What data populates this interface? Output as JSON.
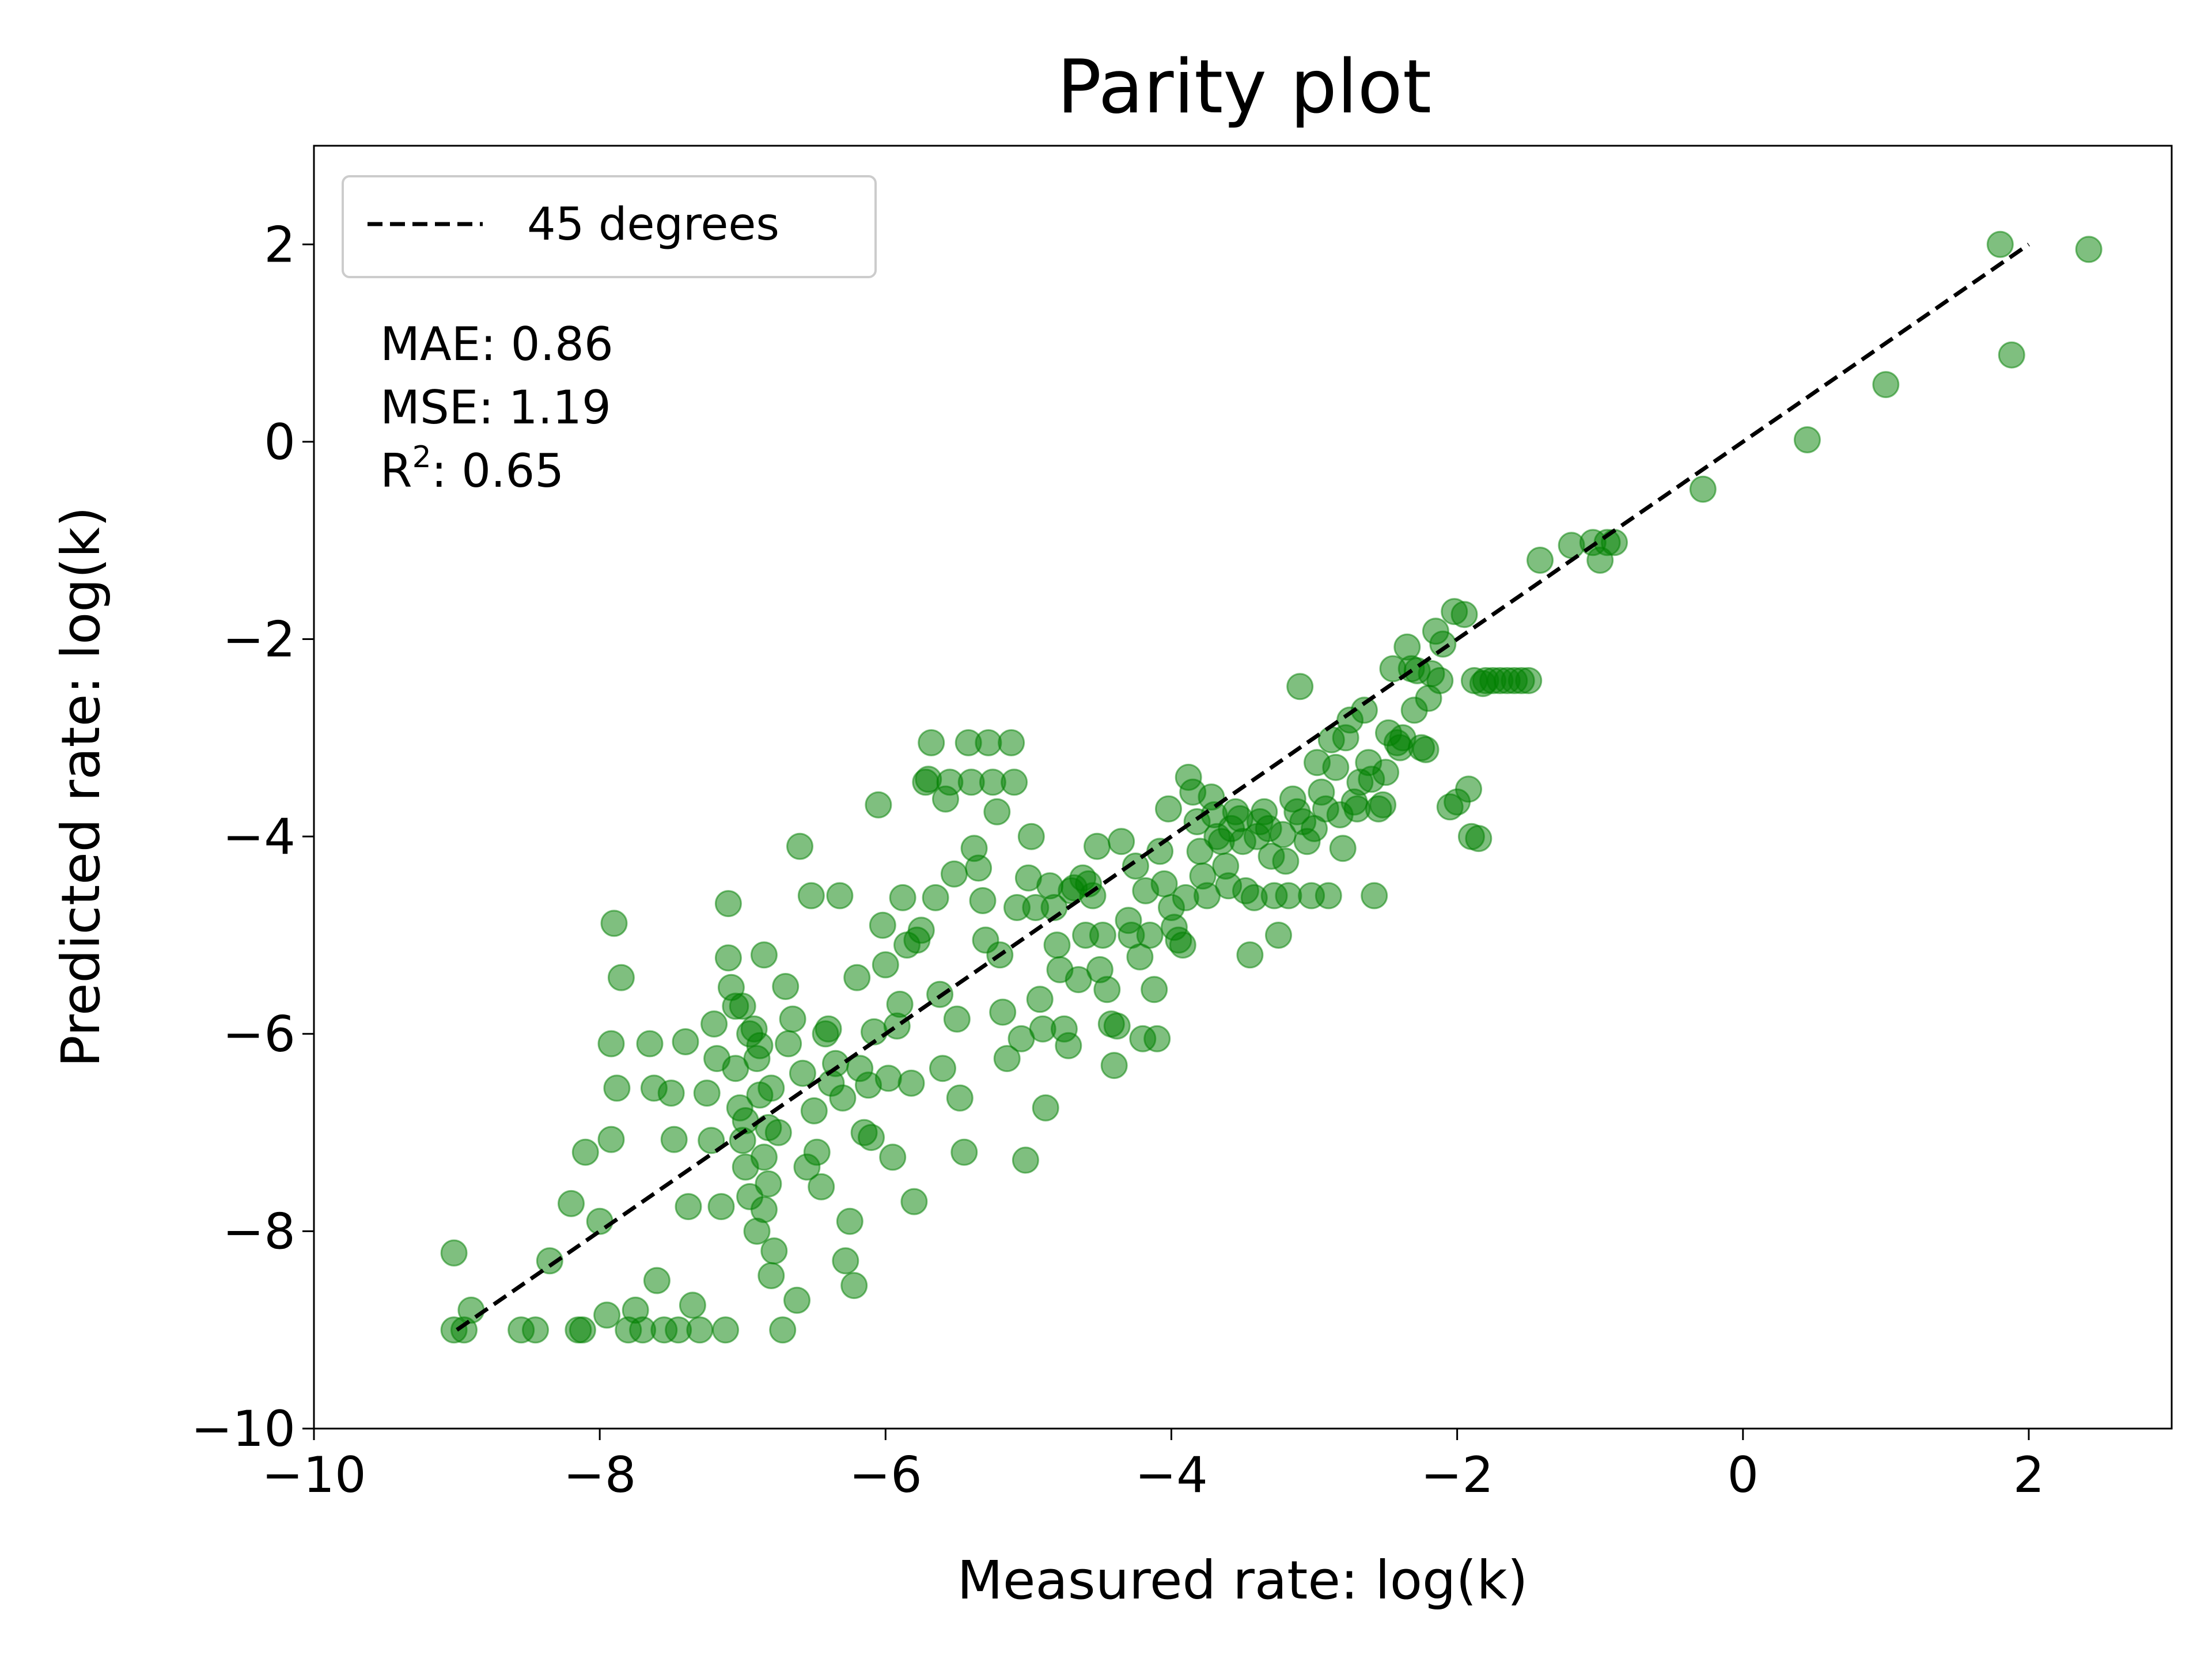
{
  "chart_data": {
    "type": "scatter",
    "title": "Parity plot",
    "xlabel": "Measured rate: log(k)",
    "ylabel": "Predicted rate: log(k)",
    "xlim": [
      -10,
      3
    ],
    "ylim": [
      -10,
      3
    ],
    "xticks": [
      -10,
      -8,
      -6,
      -4,
      -2,
      0,
      2
    ],
    "yticks": [
      -10,
      -8,
      -6,
      -4,
      -2,
      0,
      2
    ],
    "tick_labels_x": [
      "−10",
      "−8",
      "−6",
      "−4",
      "−2",
      "0",
      "2"
    ],
    "tick_labels_y": [
      "−10",
      "−8",
      "−6",
      "−4",
      "−2",
      "0",
      "2"
    ],
    "grid": false,
    "legend": {
      "position": "top-left",
      "entries": [
        "45 degrees"
      ]
    },
    "stats": {
      "mae_label": "MAE: 0.86",
      "mse_label": "MSE: 1.19",
      "r2_prefix": "R",
      "r2_sup": "2",
      "r2_value": ": 0.65"
    },
    "colors": {
      "points": "#008000",
      "line": "#000000"
    },
    "reference_line": {
      "name": "45 degrees",
      "from": [
        -9.0,
        -9.0
      ],
      "to": [
        2.0,
        2.0
      ]
    },
    "series": [
      {
        "points": [
          [
            -9.02,
            -8.22
          ],
          [
            -9.02,
            -9.0
          ],
          [
            -8.95,
            -9.0
          ],
          [
            -8.9,
            -8.8
          ],
          [
            -8.55,
            -9.0
          ],
          [
            -8.45,
            -9.0
          ],
          [
            -8.35,
            -8.3
          ],
          [
            -8.2,
            -7.72
          ],
          [
            -8.15,
            -9.0
          ],
          [
            -8.12,
            -9.0
          ],
          [
            -8.1,
            -7.2
          ],
          [
            -8.0,
            -7.9
          ],
          [
            -7.95,
            -8.85
          ],
          [
            -7.92,
            -7.07
          ],
          [
            -7.92,
            -6.1
          ],
          [
            -7.9,
            -4.88
          ],
          [
            -7.88,
            -6.55
          ],
          [
            -7.85,
            -5.43
          ],
          [
            -7.8,
            -9.0
          ],
          [
            -7.75,
            -8.8
          ],
          [
            -7.7,
            -9.0
          ],
          [
            -7.65,
            -6.1
          ],
          [
            -7.62,
            -6.55
          ],
          [
            -7.6,
            -8.5
          ],
          [
            -7.55,
            -9.0
          ],
          [
            -7.5,
            -6.6
          ],
          [
            -7.48,
            -7.07
          ],
          [
            -7.45,
            -9.0
          ],
          [
            -7.4,
            -6.08
          ],
          [
            -7.38,
            -7.75
          ],
          [
            -7.35,
            -8.75
          ],
          [
            -7.3,
            -9.0
          ],
          [
            -7.25,
            -6.6
          ],
          [
            -7.22,
            -7.08
          ],
          [
            -7.2,
            -5.9
          ],
          [
            -7.18,
            -6.25
          ],
          [
            -7.15,
            -7.75
          ],
          [
            -7.12,
            -9.0
          ],
          [
            -7.08,
            -5.53
          ],
          [
            -7.05,
            -6.35
          ],
          [
            -7.02,
            -6.75
          ],
          [
            -7.0,
            -7.08
          ],
          [
            -6.98,
            -7.35
          ],
          [
            -6.95,
            -7.65
          ],
          [
            -6.9,
            -8.0
          ],
          [
            -6.88,
            -6.12
          ],
          [
            -6.85,
            -7.25
          ],
          [
            -6.82,
            -7.52
          ],
          [
            -6.8,
            -8.45
          ],
          [
            -7.1,
            -4.68
          ],
          [
            -7.1,
            -5.23
          ],
          [
            -7.05,
            -5.72
          ],
          [
            -7.0,
            -5.72
          ],
          [
            -6.98,
            -6.88
          ],
          [
            -6.95,
            -6.0
          ],
          [
            -6.92,
            -5.95
          ],
          [
            -6.9,
            -6.25
          ],
          [
            -6.88,
            -6.62
          ],
          [
            -6.85,
            -5.2
          ],
          [
            -6.85,
            -7.78
          ],
          [
            -6.82,
            -6.95
          ],
          [
            -6.8,
            -6.55
          ],
          [
            -6.78,
            -8.2
          ],
          [
            -6.75,
            -7.0
          ],
          [
            -6.72,
            -9.0
          ],
          [
            -6.7,
            -5.52
          ],
          [
            -6.68,
            -6.1
          ],
          [
            -6.65,
            -5.85
          ],
          [
            -6.62,
            -8.7
          ],
          [
            -6.6,
            -4.1
          ],
          [
            -6.58,
            -6.4
          ],
          [
            -6.55,
            -7.35
          ],
          [
            -6.52,
            -4.6
          ],
          [
            -6.5,
            -6.78
          ],
          [
            -6.48,
            -7.2
          ],
          [
            -6.45,
            -7.55
          ],
          [
            -6.42,
            -6.0
          ],
          [
            -6.4,
            -5.95
          ],
          [
            -6.38,
            -6.5
          ],
          [
            -6.35,
            -6.3
          ],
          [
            -6.32,
            -4.6
          ],
          [
            -6.3,
            -6.65
          ],
          [
            -6.28,
            -8.3
          ],
          [
            -6.25,
            -7.9
          ],
          [
            -6.22,
            -8.55
          ],
          [
            -6.2,
            -5.43
          ],
          [
            -6.18,
            -6.35
          ],
          [
            -6.15,
            -7.0
          ],
          [
            -6.12,
            -6.52
          ],
          [
            -6.1,
            -7.05
          ],
          [
            -6.08,
            -5.98
          ],
          [
            -6.05,
            -3.68
          ],
          [
            -6.02,
            -4.9
          ],
          [
            -6.0,
            -5.3
          ],
          [
            -5.98,
            -6.45
          ],
          [
            -5.95,
            -7.25
          ],
          [
            -5.92,
            -5.92
          ],
          [
            -5.9,
            -5.7
          ],
          [
            -5.88,
            -4.62
          ],
          [
            -5.85,
            -5.1
          ],
          [
            -5.82,
            -6.5
          ],
          [
            -5.8,
            -7.7
          ],
          [
            -5.78,
            -5.05
          ],
          [
            -5.75,
            -4.95
          ],
          [
            -5.72,
            -3.45
          ],
          [
            -5.7,
            -3.42
          ],
          [
            -5.68,
            -3.05
          ],
          [
            -5.65,
            -4.62
          ],
          [
            -5.62,
            -5.6
          ],
          [
            -5.6,
            -6.35
          ],
          [
            -5.58,
            -3.62
          ],
          [
            -5.55,
            -3.45
          ],
          [
            -5.52,
            -4.38
          ],
          [
            -5.5,
            -5.85
          ],
          [
            -5.48,
            -6.65
          ],
          [
            -5.45,
            -7.2
          ],
          [
            -5.42,
            -3.05
          ],
          [
            -5.4,
            -3.45
          ],
          [
            -5.38,
            -4.12
          ],
          [
            -5.35,
            -4.32
          ],
          [
            -5.32,
            -4.65
          ],
          [
            -5.3,
            -5.05
          ],
          [
            -5.28,
            -3.05
          ],
          [
            -5.25,
            -3.45
          ],
          [
            -5.22,
            -3.75
          ],
          [
            -5.2,
            -5.2
          ],
          [
            -5.18,
            -5.78
          ],
          [
            -5.15,
            -6.25
          ],
          [
            -5.12,
            -3.05
          ],
          [
            -5.1,
            -3.45
          ],
          [
            -5.08,
            -4.72
          ],
          [
            -5.05,
            -6.05
          ],
          [
            -5.02,
            -7.28
          ],
          [
            -5.0,
            -4.42
          ],
          [
            -4.98,
            -4.0
          ],
          [
            -4.95,
            -4.72
          ],
          [
            -4.92,
            -5.65
          ],
          [
            -4.9,
            -5.95
          ],
          [
            -4.88,
            -6.75
          ],
          [
            -4.85,
            -4.5
          ],
          [
            -4.82,
            -4.72
          ],
          [
            -4.8,
            -5.1
          ],
          [
            -4.78,
            -5.35
          ],
          [
            -4.75,
            -5.95
          ],
          [
            -4.72,
            -6.12
          ],
          [
            -4.7,
            -4.55
          ],
          [
            -4.68,
            -4.52
          ],
          [
            -4.65,
            -5.45
          ],
          [
            -4.62,
            -4.42
          ],
          [
            -4.6,
            -5.0
          ],
          [
            -4.58,
            -4.48
          ],
          [
            -4.55,
            -4.6
          ],
          [
            -4.52,
            -4.1
          ],
          [
            -4.5,
            -5.35
          ],
          [
            -4.48,
            -5.0
          ],
          [
            -4.45,
            -5.55
          ],
          [
            -4.42,
            -5.9
          ],
          [
            -4.4,
            -6.32
          ],
          [
            -4.38,
            -5.92
          ],
          [
            -4.35,
            -4.05
          ],
          [
            -4.3,
            -4.85
          ],
          [
            -4.28,
            -5.0
          ],
          [
            -4.25,
            -4.3
          ],
          [
            -4.22,
            -5.22
          ],
          [
            -4.2,
            -6.05
          ],
          [
            -4.18,
            -4.55
          ],
          [
            -4.15,
            -5.0
          ],
          [
            -4.12,
            -5.55
          ],
          [
            -4.1,
            -6.05
          ],
          [
            -4.08,
            -4.15
          ],
          [
            -4.05,
            -4.48
          ],
          [
            -4.02,
            -3.72
          ],
          [
            -4.0,
            -4.72
          ],
          [
            -3.98,
            -4.92
          ],
          [
            -3.95,
            -5.05
          ],
          [
            -3.92,
            -5.1
          ],
          [
            -3.9,
            -4.62
          ],
          [
            -3.88,
            -3.4
          ],
          [
            -3.85,
            -3.55
          ],
          [
            -3.82,
            -3.85
          ],
          [
            -3.8,
            -4.15
          ],
          [
            -3.78,
            -4.4
          ],
          [
            -3.75,
            -4.6
          ],
          [
            -3.72,
            -3.6
          ],
          [
            -3.7,
            -3.78
          ],
          [
            -3.68,
            -4.0
          ],
          [
            -3.65,
            -4.05
          ],
          [
            -3.62,
            -4.3
          ],
          [
            -3.6,
            -4.5
          ],
          [
            -3.58,
            -3.92
          ],
          [
            -3.55,
            -3.75
          ],
          [
            -3.52,
            -3.82
          ],
          [
            -3.5,
            -4.05
          ],
          [
            -3.48,
            -4.55
          ],
          [
            -3.45,
            -5.2
          ],
          [
            -3.42,
            -4.62
          ],
          [
            -3.4,
            -4.0
          ],
          [
            -3.38,
            -3.85
          ],
          [
            -3.35,
            -3.75
          ],
          [
            -3.32,
            -3.92
          ],
          [
            -3.3,
            -4.2
          ],
          [
            -3.28,
            -4.6
          ],
          [
            -3.25,
            -5.0
          ],
          [
            -3.22,
            -3.98
          ],
          [
            -3.2,
            -4.25
          ],
          [
            -3.18,
            -4.6
          ],
          [
            -3.15,
            -3.62
          ],
          [
            -3.12,
            -3.75
          ],
          [
            -3.1,
            -2.48
          ],
          [
            -3.08,
            -3.85
          ],
          [
            -3.05,
            -4.05
          ],
          [
            -3.02,
            -4.6
          ],
          [
            -3.0,
            -3.92
          ],
          [
            -2.98,
            -3.25
          ],
          [
            -2.95,
            -3.55
          ],
          [
            -2.92,
            -3.72
          ],
          [
            -2.9,
            -4.6
          ],
          [
            -2.88,
            -3.02
          ],
          [
            -2.85,
            -3.3
          ],
          [
            -2.82,
            -3.78
          ],
          [
            -2.8,
            -4.12
          ],
          [
            -2.78,
            -3.0
          ],
          [
            -2.75,
            -2.82
          ],
          [
            -2.72,
            -3.65
          ],
          [
            -2.7,
            -3.72
          ],
          [
            -2.68,
            -3.45
          ],
          [
            -2.65,
            -2.72
          ],
          [
            -2.62,
            -3.25
          ],
          [
            -2.6,
            -3.42
          ],
          [
            -2.58,
            -4.6
          ],
          [
            -2.55,
            -3.72
          ],
          [
            -2.52,
            -3.68
          ],
          [
            -2.5,
            -3.35
          ],
          [
            -2.48,
            -2.95
          ],
          [
            -2.45,
            -2.3
          ],
          [
            -2.42,
            -3.05
          ],
          [
            -2.4,
            -3.1
          ],
          [
            -2.38,
            -3.0
          ],
          [
            -2.35,
            -2.08
          ],
          [
            -2.32,
            -2.3
          ],
          [
            -2.3,
            -2.72
          ],
          [
            -2.28,
            -2.32
          ],
          [
            -2.25,
            -3.1
          ],
          [
            -2.22,
            -3.12
          ],
          [
            -2.2,
            -2.6
          ],
          [
            -2.18,
            -2.35
          ],
          [
            -2.15,
            -1.92
          ],
          [
            -2.12,
            -2.42
          ],
          [
            -2.1,
            -2.05
          ],
          [
            -2.05,
            -3.7
          ],
          [
            -2.02,
            -1.72
          ],
          [
            -2.0,
            -3.65
          ],
          [
            -1.95,
            -1.75
          ],
          [
            -1.92,
            -3.52
          ],
          [
            -1.9,
            -4.0
          ],
          [
            -1.88,
            -2.42
          ],
          [
            -1.85,
            -4.02
          ],
          [
            -1.82,
            -2.45
          ],
          [
            -1.8,
            -2.42
          ],
          [
            -1.75,
            -2.42
          ],
          [
            -1.7,
            -2.42
          ],
          [
            -1.65,
            -2.42
          ],
          [
            -1.6,
            -2.42
          ],
          [
            -1.55,
            -2.42
          ],
          [
            -1.5,
            -2.42
          ],
          [
            -1.42,
            -1.2
          ],
          [
            -1.2,
            -1.05
          ],
          [
            -1.05,
            -1.02
          ],
          [
            -1.0,
            -1.2
          ],
          [
            -0.95,
            -1.02
          ],
          [
            -0.9,
            -1.02
          ],
          [
            -0.28,
            -0.48
          ],
          [
            0.45,
            0.02
          ],
          [
            1.0,
            0.58
          ],
          [
            1.8,
            2.0
          ],
          [
            1.88,
            0.88
          ],
          [
            2.42,
            1.95
          ]
        ]
      }
    ]
  }
}
